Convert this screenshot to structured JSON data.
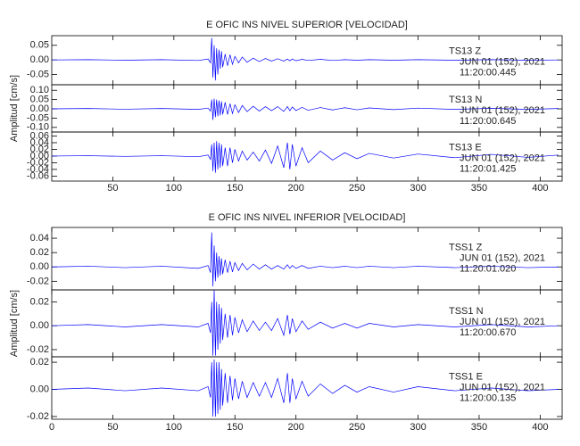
{
  "chart_data": [
    {
      "type": "line",
      "title": "E OFIC INS NIVEL SUPERIOR [VELOCIDAD]",
      "ylabel": "Amplitud [cm/s]",
      "xlim": [
        0,
        418
      ],
      "xticks": [
        50,
        100,
        150,
        200,
        250,
        300,
        350,
        400
      ],
      "x": [
        0,
        30,
        60,
        90,
        120,
        128,
        130,
        131,
        132,
        133,
        134,
        135,
        136,
        137,
        138,
        139,
        140,
        142,
        144,
        146,
        148,
        150,
        153,
        156,
        160,
        165,
        170,
        175,
        180,
        185,
        190,
        193,
        195,
        197,
        200,
        205,
        210,
        220,
        230,
        240,
        250,
        260,
        280,
        300,
        330,
        360,
        390,
        415
      ],
      "subplots": [
        {
          "station": "TS13 Z",
          "date": "JUN 01 (152), 2021",
          "time": "11:20:00.445",
          "color": "#0000ff",
          "ylim": [
            -0.085,
            0.083
          ],
          "yticks": [
            {
              "value": 0.05,
              "label": "0.05"
            },
            {
              "value": 0,
              "label": "0.00"
            },
            {
              "value": -0.05,
              "label": "-0.05"
            }
          ],
          "values": [
            0,
            0.001,
            -0.001,
            0.001,
            -0.002,
            0.003,
            -0.01,
            0.075,
            -0.06,
            0.05,
            -0.07,
            0.04,
            -0.05,
            0.035,
            -0.03,
            0.03,
            -0.025,
            0.02,
            -0.02,
            0.018,
            -0.015,
            0.012,
            -0.01,
            0.01,
            -0.008,
            0.006,
            -0.006,
            0.005,
            -0.004,
            0.004,
            -0.004,
            0.003,
            -0.003,
            0.003,
            -0.003,
            0.002,
            -0.002,
            0.002,
            -0.002,
            0.001,
            -0.001,
            0.001,
            -0.001,
            0.001,
            -0.001,
            0.001,
            -0.001,
            0
          ]
        },
        {
          "station": "TS13 N",
          "date": "JUN 01 (152), 2021",
          "time": "11:20:00.645",
          "color": "#0000ff",
          "ylim": [
            -0.125,
            0.13
          ],
          "yticks": [
            {
              "value": 0.1,
              "label": "0.10"
            },
            {
              "value": 0.05,
              "label": "0.05"
            },
            {
              "value": 0,
              "label": "0.00"
            },
            {
              "value": -0.05,
              "label": "-0.05"
            },
            {
              "value": -0.1,
              "label": "-0.10"
            }
          ],
          "values": [
            0,
            0.002,
            -0.002,
            0.002,
            -0.003,
            0.004,
            -0.012,
            0.05,
            -0.06,
            0.055,
            -0.045,
            0.05,
            -0.04,
            0.045,
            -0.035,
            0.04,
            -0.03,
            0.035,
            -0.03,
            0.028,
            -0.025,
            0.022,
            -0.02,
            0.018,
            -0.015,
            0.014,
            -0.012,
            0.012,
            -0.01,
            0.012,
            -0.014,
            0.012,
            -0.01,
            0.01,
            -0.009,
            0.008,
            -0.008,
            0.007,
            -0.006,
            0.006,
            -0.005,
            0.005,
            -0.004,
            0.004,
            -0.003,
            0.003,
            -0.003,
            0.002
          ]
        },
        {
          "station": "TS13 E",
          "date": "JUN 01 (152), 2021",
          "time": "11:20:01.425",
          "color": "#0000ff",
          "ylim": [
            -0.075,
            0.072
          ],
          "yticks": [
            {
              "value": 0.06,
              "label": "0.06"
            },
            {
              "value": 0.04,
              "label": "0.04"
            },
            {
              "value": 0.02,
              "label": "0.02"
            },
            {
              "value": 0,
              "label": "0.00"
            },
            {
              "value": -0.02,
              "label": "-0.02"
            },
            {
              "value": -0.04,
              "label": "-0.04"
            },
            {
              "value": -0.06,
              "label": "-0.06"
            }
          ],
          "values": [
            0,
            0.001,
            -0.001,
            0.001,
            -0.002,
            0.003,
            -0.01,
            0.035,
            -0.045,
            0.04,
            -0.05,
            0.045,
            -0.04,
            0.04,
            -0.035,
            0.035,
            -0.03,
            0.025,
            -0.03,
            0.025,
            -0.02,
            0.02,
            -0.015,
            0.015,
            -0.012,
            0.012,
            -0.015,
            0.018,
            -0.022,
            0.03,
            -0.035,
            0.04,
            -0.04,
            0.035,
            -0.03,
            0.025,
            -0.02,
            0.015,
            -0.012,
            0.01,
            -0.008,
            0.008,
            -0.006,
            0.006,
            -0.005,
            0.005,
            -0.004,
            0.003
          ]
        }
      ]
    },
    {
      "type": "line",
      "title": "E OFIC INS NIVEL INFERIOR [VELOCIDAD]",
      "ylabel": "Amplitud [cm/s]",
      "xlim": [
        0,
        418
      ],
      "xticks": [
        0,
        50,
        100,
        150,
        200,
        250,
        300,
        350,
        400
      ],
      "x": [
        0,
        30,
        60,
        90,
        120,
        128,
        130,
        131,
        132,
        133,
        134,
        135,
        136,
        137,
        138,
        139,
        140,
        142,
        144,
        146,
        148,
        150,
        153,
        156,
        160,
        165,
        170,
        175,
        180,
        185,
        190,
        193,
        195,
        197,
        200,
        205,
        210,
        220,
        230,
        240,
        250,
        260,
        280,
        300,
        330,
        360,
        390,
        415
      ],
      "subplots": [
        {
          "station": "TSS1 Z",
          "date": "JUN 01 (152), 2021",
          "time": "11:20:01.020",
          "color": "#0000ff",
          "ylim": [
            -0.032,
            0.055
          ],
          "yticks": [
            {
              "value": 0.04,
              "label": "0.04"
            },
            {
              "value": 0.02,
              "label": "0.02"
            },
            {
              "value": 0,
              "label": "0.00"
            },
            {
              "value": -0.02,
              "label": "-0.02"
            }
          ],
          "values": [
            0,
            0.001,
            -0.001,
            0.001,
            -0.002,
            0.002,
            -0.008,
            0.048,
            -0.027,
            0.03,
            -0.02,
            0.02,
            -0.015,
            0.015,
            -0.012,
            0.012,
            -0.01,
            0.01,
            -0.008,
            0.008,
            -0.007,
            0.006,
            -0.005,
            0.005,
            -0.004,
            0.004,
            -0.003,
            0.003,
            -0.003,
            0.002,
            -0.003,
            0.003,
            -0.002,
            0.002,
            -0.002,
            0.002,
            -0.002,
            0.001,
            -0.001,
            0.001,
            -0.001,
            0.001,
            -0.001,
            0.001,
            -0.001,
            0.001,
            -0.001,
            0
          ]
        },
        {
          "station": "TSS1 N",
          "date": "JUN 01 (152), 2021",
          "time": "11:20:00.670",
          "color": "#0000ff",
          "ylim": [
            -0.026,
            0.03
          ],
          "yticks": [
            {
              "value": 0.02,
              "label": "0.02"
            },
            {
              "value": 0,
              "label": "0.00"
            },
            {
              "value": -0.02,
              "label": "-0.02"
            }
          ],
          "values": [
            0,
            0.001,
            -0.001,
            0.001,
            -0.001,
            0.002,
            -0.006,
            0.02,
            -0.025,
            0.03,
            -0.025,
            0.02,
            -0.02,
            0.018,
            -0.015,
            0.015,
            -0.012,
            0.01,
            -0.01,
            0.009,
            -0.008,
            0.007,
            -0.006,
            0.005,
            -0.005,
            0.004,
            -0.004,
            0.003,
            -0.004,
            0.006,
            -0.008,
            0.009,
            -0.007,
            0.006,
            -0.005,
            0.004,
            -0.003,
            0.003,
            -0.002,
            0.002,
            -0.002,
            0.002,
            -0.001,
            0.001,
            -0.001,
            0.001,
            -0.001,
            0
          ]
        },
        {
          "station": "TSS1 E",
          "date": "JUN 01 (152), 2021",
          "time": "11:20:00.135",
          "color": "#0000ff",
          "ylim": [
            -0.022,
            0.024
          ],
          "yticks": [
            {
              "value": 0.02,
              "label": "0.02"
            },
            {
              "value": 0,
              "label": "0.00"
            },
            {
              "value": -0.02,
              "label": "-0.02"
            }
          ],
          "values": [
            0,
            0.001,
            -0.001,
            0.001,
            -0.001,
            0.002,
            -0.006,
            0.02,
            -0.02,
            0.022,
            -0.02,
            0.02,
            -0.018,
            0.02,
            -0.015,
            0.015,
            -0.012,
            0.012,
            -0.01,
            0.01,
            -0.008,
            0.008,
            -0.007,
            0.006,
            -0.006,
            0.005,
            -0.005,
            0.005,
            -0.006,
            0.008,
            -0.01,
            0.012,
            -0.01,
            0.008,
            -0.007,
            0.006,
            -0.005,
            0.004,
            -0.003,
            0.003,
            -0.002,
            0.002,
            -0.002,
            0.002,
            -0.001,
            0.001,
            -0.001,
            0
          ]
        }
      ]
    }
  ]
}
